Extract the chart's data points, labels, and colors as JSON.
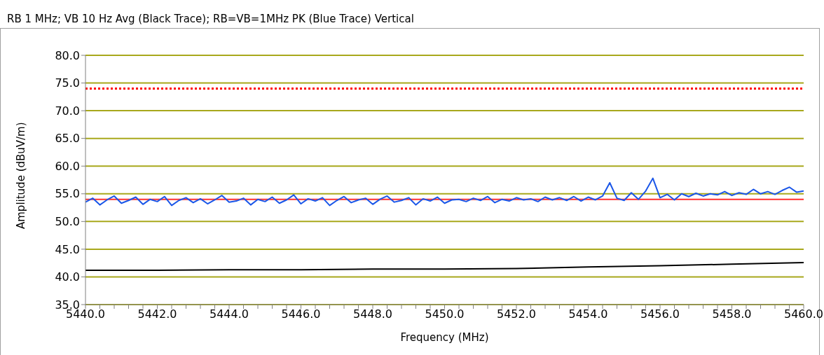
{
  "chart_data": {
    "type": "line",
    "title": "RB 1 MHz; VB 10 Hz Avg (Black Trace); RB=VB=1MHz PK (Blue Trace) Vertical",
    "xlabel": "Frequency (MHz)",
    "ylabel": "Amplitude (dBuV/m)",
    "xlim": [
      5440,
      5460
    ],
    "xticks": [
      {
        "value": 5440,
        "label": "5440.0"
      },
      {
        "value": 5440.4,
        "label": null
      },
      {
        "value": 5440.8,
        "label": null
      },
      {
        "value": 5441.2,
        "label": null
      },
      {
        "value": 5441.6,
        "label": null
      },
      {
        "value": 5442,
        "label": "5442.0"
      },
      {
        "value": 5442.4,
        "label": null
      },
      {
        "value": 5442.8,
        "label": null
      },
      {
        "value": 5443.2,
        "label": null
      },
      {
        "value": 5443.6,
        "label": null
      },
      {
        "value": 5444,
        "label": "5444.0"
      },
      {
        "value": 5444.4,
        "label": null
      },
      {
        "value": 5444.8,
        "label": null
      },
      {
        "value": 5445.2,
        "label": null
      },
      {
        "value": 5445.6,
        "label": null
      },
      {
        "value": 5446,
        "label": "5446.0"
      },
      {
        "value": 5446.4,
        "label": null
      },
      {
        "value": 5446.8,
        "label": null
      },
      {
        "value": 5447.2,
        "label": null
      },
      {
        "value": 5447.6,
        "label": null
      },
      {
        "value": 5448,
        "label": "5448.0"
      },
      {
        "value": 5448.4,
        "label": null
      },
      {
        "value": 5448.8,
        "label": null
      },
      {
        "value": 5449.2,
        "label": null
      },
      {
        "value": 5449.6,
        "label": null
      },
      {
        "value": 5450,
        "label": "5450.0"
      },
      {
        "value": 5450.4,
        "label": null
      },
      {
        "value": 5450.8,
        "label": null
      },
      {
        "value": 5451.2,
        "label": null
      },
      {
        "value": 5451.6,
        "label": null
      },
      {
        "value": 5452,
        "label": "5452.0"
      },
      {
        "value": 5452.4,
        "label": null
      },
      {
        "value": 5452.8,
        "label": null
      },
      {
        "value": 5453.2,
        "label": null
      },
      {
        "value": 5453.6,
        "label": null
      },
      {
        "value": 5454,
        "label": "5454.0"
      },
      {
        "value": 5454.4,
        "label": null
      },
      {
        "value": 5454.8,
        "label": null
      },
      {
        "value": 5455.2,
        "label": null
      },
      {
        "value": 5455.6,
        "label": null
      },
      {
        "value": 5456,
        "label": "5456.0"
      },
      {
        "value": 5456.4,
        "label": null
      },
      {
        "value": 5456.8,
        "label": null
      },
      {
        "value": 5457.2,
        "label": null
      },
      {
        "value": 5457.6,
        "label": null
      },
      {
        "value": 5458,
        "label": "5458.0"
      },
      {
        "value": 5458.4,
        "label": null
      },
      {
        "value": 5458.8,
        "label": null
      },
      {
        "value": 5459.2,
        "label": null
      },
      {
        "value": 5459.6,
        "label": null
      },
      {
        "value": 5460,
        "label": "5460.0"
      }
    ],
    "ylim": [
      35,
      80
    ],
    "yticks": [
      {
        "value": 35,
        "label": "35.0"
      },
      {
        "value": 40,
        "label": "40.0"
      },
      {
        "value": 45,
        "label": "45.0"
      },
      {
        "value": 50,
        "label": "50.0"
      },
      {
        "value": 55,
        "label": "55.0"
      },
      {
        "value": 60,
        "label": "60.0"
      },
      {
        "value": 65,
        "label": "65.0"
      },
      {
        "value": 70,
        "label": "70.0"
      },
      {
        "value": 75,
        "label": "75.0"
      },
      {
        "value": 80,
        "label": "80.0"
      }
    ],
    "grid": "y",
    "marker": "none",
    "x": [
      5440.0,
      5440.2,
      5440.4,
      5440.6,
      5440.8,
      5441.0,
      5441.2,
      5441.4,
      5441.6,
      5441.8,
      5442.0,
      5442.2,
      5442.4,
      5442.6,
      5442.8,
      5443.0,
      5443.2,
      5443.4,
      5443.6,
      5443.8,
      5444.0,
      5444.2,
      5444.4,
      5444.6,
      5444.8,
      5445.0,
      5445.2,
      5445.4,
      5445.6,
      5445.8,
      5446.0,
      5446.2,
      5446.4,
      5446.6,
      5446.8,
      5447.0,
      5447.2,
      5447.4,
      5447.6,
      5447.8,
      5448.0,
      5448.2,
      5448.4,
      5448.6,
      5448.8,
      5449.0,
      5449.2,
      5449.4,
      5449.6,
      5449.8,
      5450.0,
      5450.2,
      5450.4,
      5450.6,
      5450.8,
      5451.0,
      5451.2,
      5451.4,
      5451.6,
      5451.8,
      5452.0,
      5452.2,
      5452.4,
      5452.6,
      5452.8,
      5453.0,
      5453.2,
      5453.4,
      5453.6,
      5453.8,
      5454.0,
      5454.2,
      5454.4,
      5454.6,
      5454.8,
      5455.0,
      5455.2,
      5455.4,
      5455.6,
      5455.8,
      5456.0,
      5456.2,
      5456.4,
      5456.6,
      5456.8,
      5457.0,
      5457.2,
      5457.4,
      5457.6,
      5457.8,
      5458.0,
      5458.2,
      5458.4,
      5458.6,
      5458.8,
      5459.0,
      5459.2,
      5459.4,
      5459.6,
      5459.8,
      5460.0
    ],
    "series": [
      {
        "color": "#1a56e8",
        "values": [
          53.5,
          54.2,
          53.0,
          53.9,
          54.6,
          53.3,
          53.8,
          54.4,
          53.1,
          54.0,
          53.6,
          54.5,
          52.9,
          53.8,
          54.3,
          53.4,
          54.1,
          53.2,
          53.9,
          54.7,
          53.5,
          53.7,
          54.2,
          53.0,
          54.0,
          53.6,
          54.4,
          53.3,
          53.9,
          54.8,
          53.2,
          54.1,
          53.7,
          54.3,
          52.9,
          53.8,
          54.5,
          53.4,
          53.9,
          54.2,
          53.1,
          54.0,
          54.6,
          53.5,
          53.8,
          54.3,
          53.0,
          54.1,
          53.7,
          54.4,
          53.3,
          53.9,
          54.0,
          53.6,
          54.2,
          53.8,
          54.5,
          53.4,
          54.0,
          53.7,
          54.3,
          53.9,
          54.1,
          53.6,
          54.4,
          53.9,
          54.3,
          53.8,
          54.5,
          53.7,
          54.4,
          53.9,
          54.6,
          57.0,
          54.2,
          53.8,
          55.2,
          54.0,
          55.5,
          57.8,
          54.3,
          54.9,
          53.9,
          55.0,
          54.5,
          55.1,
          54.6,
          55.0,
          54.8,
          55.4,
          54.7,
          55.2,
          54.9,
          55.8,
          55.0,
          55.4,
          54.9,
          55.6,
          56.2,
          55.3,
          55.5
        ]
      },
      {
        "color": "#000000",
        "x": [
          5440,
          5442,
          5444,
          5446,
          5448,
          5450,
          5452,
          5454,
          5456,
          5458,
          5460
        ],
        "values": [
          41.2,
          41.2,
          41.3,
          41.3,
          41.4,
          41.4,
          41.5,
          41.8,
          42.0,
          42.3,
          42.6
        ]
      }
    ],
    "ref_lines": [
      {
        "axis": "y",
        "value": 74,
        "color": "#ff0000",
        "line_style": "dotted"
      },
      {
        "axis": "y",
        "value": 54,
        "color": "#ff3030",
        "line_style": "solid"
      }
    ]
  }
}
